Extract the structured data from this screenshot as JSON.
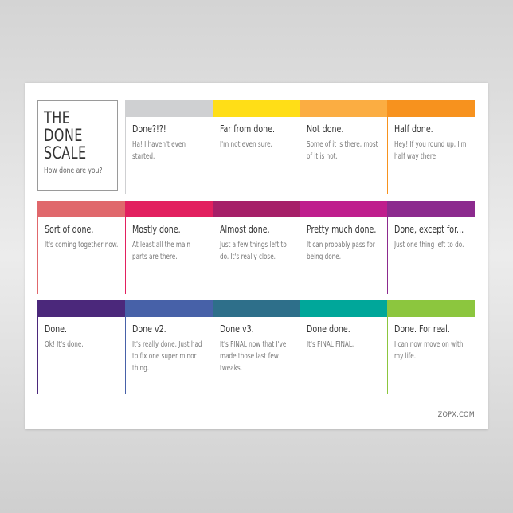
{
  "title_lines": [
    "THE",
    "DONE",
    "SCALE"
  ],
  "subtitle": "How done are you?",
  "credit": "ZOPX.COM",
  "cells": [
    {
      "heading": "Done?!?!",
      "text": "Ha! I haven't even started.",
      "color": "#cfd0d2"
    },
    {
      "heading": "Far from done.",
      "text": "I'm not even sure.",
      "color": "#ffde17"
    },
    {
      "heading": "Not done.",
      "text": "Some of it is there, most of it is not.",
      "color": "#fbad42"
    },
    {
      "heading": "Half done.",
      "text": "Hey! If you round up, I'm half way there!",
      "color": "#f7921e"
    },
    {
      "heading": "Sort of done.",
      "text": "It's coming together now.",
      "color": "#e0686c"
    },
    {
      "heading": "Mostly done.",
      "text": "At least all the main parts are there.",
      "color": "#e2205f"
    },
    {
      "heading": "Almost done.",
      "text": "Just a few things left to do. It's really close.",
      "color": "#a61f68"
    },
    {
      "heading": "Pretty much done.",
      "text": "It can probably pass for being done.",
      "color": "#bf1e8d"
    },
    {
      "heading": "Done, except for...",
      "text": "Just one thing left to do.",
      "color": "#8c2a8e"
    },
    {
      "heading": "Done.",
      "text": "Ok! It's done.",
      "color": "#4b287b"
    },
    {
      "heading": "Done v2.",
      "text": "It's really done. Just had to fix one super minor thing.",
      "color": "#4761a8"
    },
    {
      "heading": "Done v3.",
      "text": "It's FINAL now that I've made those last few tweaks.",
      "color": "#2e6f8a"
    },
    {
      "heading": "Done done.",
      "text": "It's FINAL FINAL.",
      "color": "#00a79a"
    },
    {
      "heading": "Done. For real.",
      "text": "I can now move on with my life.",
      "color": "#8cc63e"
    }
  ]
}
